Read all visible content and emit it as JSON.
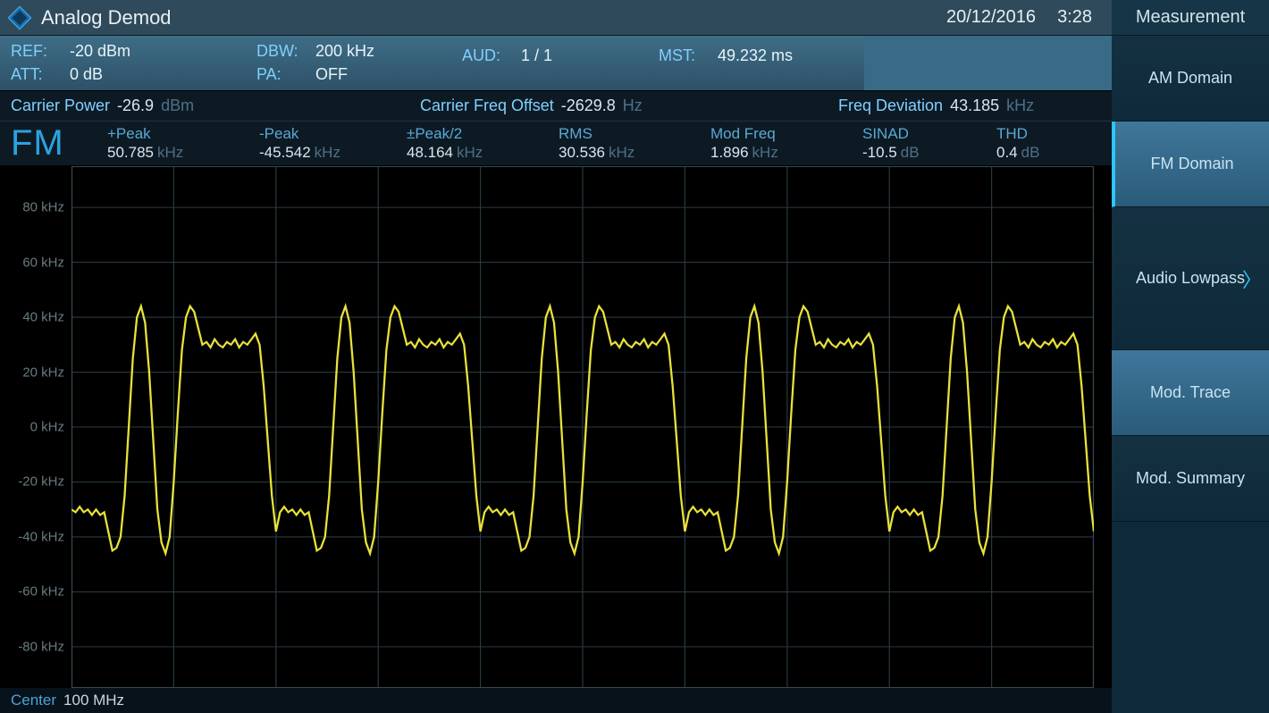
{
  "title": "Analog Demod",
  "date": "20/12/2016",
  "time": "3:28",
  "info": {
    "ref": {
      "label": "REF:",
      "value": "-20 dBm"
    },
    "att": {
      "label": "ATT:",
      "value": "0 dB"
    },
    "dbw": {
      "label": "DBW:",
      "value": "200 kHz"
    },
    "pa": {
      "label": "PA:",
      "value": "OFF"
    },
    "aud": {
      "label": "AUD:",
      "value": "1 / 1"
    },
    "mst": {
      "label": "MST:",
      "value": "49.232 ms"
    }
  },
  "meas": {
    "carrier_power": {
      "label": "Carrier Power",
      "value": "-26.9",
      "unit": "dBm"
    },
    "carrier_freq_offset": {
      "label": "Carrier Freq Offset",
      "value": "-2629.8",
      "unit": "Hz"
    },
    "freq_deviation": {
      "label": "Freq Deviation",
      "value": "43.185",
      "unit": "kHz"
    }
  },
  "fm": {
    "heading": "FM",
    "cols": {
      "peak_plus": {
        "label": "+Peak",
        "value": "50.785",
        "unit": "kHz"
      },
      "peak_minus": {
        "label": "-Peak",
        "value": "-45.542",
        "unit": "kHz"
      },
      "peak_half": {
        "label": "±Peak/2",
        "value": "48.164",
        "unit": "kHz"
      },
      "rms": {
        "label": "RMS",
        "value": "30.536",
        "unit": "kHz"
      },
      "mod_freq": {
        "label": "Mod Freq",
        "value": "1.896",
        "unit": "kHz"
      },
      "sinad": {
        "label": "SINAD",
        "value": "-10.5",
        "unit": "dB"
      },
      "thd": {
        "label": "THD",
        "value": "0.4",
        "unit": "dB"
      }
    }
  },
  "footer": {
    "label": "Center",
    "value": "100 MHz"
  },
  "sidebar": {
    "title": "Measurement",
    "items": [
      {
        "label": "AM Domain",
        "style": "dark",
        "selected": false,
        "chevron": false
      },
      {
        "label": "FM Domain",
        "style": "light",
        "selected": true,
        "chevron": false
      },
      {
        "label": "Audio Lowpass",
        "style": "dark",
        "selected": false,
        "chevron": true,
        "tall": true
      },
      {
        "label": "Mod. Trace",
        "style": "light",
        "selected": false,
        "chevron": false
      },
      {
        "label": "Mod. Summary",
        "style": "dark",
        "selected": false,
        "chevron": false
      }
    ]
  },
  "chart": {
    "type": "line",
    "trace_color": "#e8e23a",
    "trace_width": 2,
    "background_color": "#000000",
    "grid_color": "#2a3a42",
    "axis_color": "#3a4a52",
    "ylabel_color": "#6a7a80",
    "ylim": [
      -95,
      95
    ],
    "ytick_step": 20,
    "yticks": [
      80,
      60,
      40,
      20,
      0,
      -20,
      -40,
      -60,
      -80
    ],
    "ytick_unit": "kHz",
    "x_divisions": 10,
    "pattern_repeats": 5,
    "pattern": [
      [
        0.0,
        -30
      ],
      [
        0.004,
        -31
      ],
      [
        0.008,
        -29
      ],
      [
        0.012,
        -31
      ],
      [
        0.016,
        -30
      ],
      [
        0.02,
        -32
      ],
      [
        0.024,
        -30
      ],
      [
        0.028,
        -32
      ],
      [
        0.032,
        -31
      ],
      [
        0.036,
        -38
      ],
      [
        0.04,
        -45
      ],
      [
        0.044,
        -44
      ],
      [
        0.048,
        -40
      ],
      [
        0.052,
        -25
      ],
      [
        0.056,
        0
      ],
      [
        0.06,
        25
      ],
      [
        0.064,
        40
      ],
      [
        0.068,
        44
      ],
      [
        0.072,
        38
      ],
      [
        0.076,
        20
      ],
      [
        0.08,
        -5
      ],
      [
        0.084,
        -30
      ],
      [
        0.088,
        -42
      ],
      [
        0.092,
        -46
      ],
      [
        0.096,
        -40
      ],
      [
        0.1,
        -20
      ],
      [
        0.104,
        5
      ],
      [
        0.108,
        28
      ],
      [
        0.112,
        40
      ],
      [
        0.116,
        44
      ],
      [
        0.12,
        42
      ],
      [
        0.124,
        36
      ],
      [
        0.128,
        30
      ],
      [
        0.132,
        31
      ],
      [
        0.136,
        29
      ],
      [
        0.14,
        32
      ],
      [
        0.144,
        30
      ],
      [
        0.148,
        29
      ],
      [
        0.152,
        31
      ],
      [
        0.156,
        30
      ],
      [
        0.16,
        32
      ],
      [
        0.164,
        29
      ],
      [
        0.168,
        31
      ],
      [
        0.172,
        30
      ],
      [
        0.176,
        32
      ],
      [
        0.18,
        34
      ],
      [
        0.184,
        30
      ],
      [
        0.188,
        15
      ],
      [
        0.192,
        -5
      ],
      [
        0.196,
        -25
      ],
      [
        0.2,
        -38
      ]
    ]
  }
}
